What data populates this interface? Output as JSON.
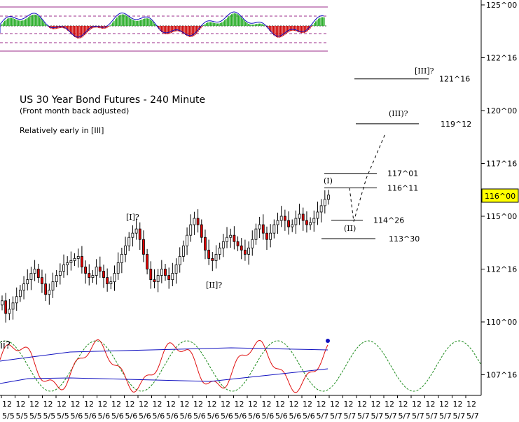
{
  "chart_data": {
    "type": "candlestick",
    "title": "US 30 Year Bond Futures - 240 Minute",
    "subtitle": "(Front month back adjusted)",
    "note": "Relatively early in [III]",
    "current_price": "116^00",
    "y_ticks": [
      "125^00",
      "122^16",
      "120^00",
      "117^16",
      "115^00",
      "112^16",
      "110^00",
      "107^16"
    ],
    "x_tick_top": "12",
    "x_tick_labels": [
      "5/5",
      "5/5",
      "5/5",
      "5/5",
      "5/5",
      "5/6",
      "5/6",
      "5/6",
      "5/6",
      "5/6",
      "5/6",
      "5/6",
      "5/6",
      "5/6",
      "5/6",
      "5/6",
      "5/6",
      "5/6",
      "5/6",
      "5/6",
      "5/6",
      "5/6",
      "5/6",
      "5/7",
      "5/7",
      "5/7",
      "5/7",
      "5/7",
      "5/7",
      "5/7",
      "5/7",
      "5/7",
      "5/7",
      "5/7",
      "5/7"
    ],
    "levels": [
      {
        "label": "121^16",
        "value": 121.5,
        "x_start": 0.0,
        "x_end": 1.0
      },
      {
        "label": "119^12",
        "value": 119.375
      },
      {
        "label": "117^01",
        "value": 117.03
      },
      {
        "label": "116^11",
        "value": 116.34
      },
      {
        "label": "114^26",
        "value": 114.81
      },
      {
        "label": "113^30",
        "value": 113.94
      }
    ],
    "wave_labels": [
      "[III]?",
      "(III)?",
      "(I)",
      "(II)",
      "[I]?",
      "[II]?",
      "ii?"
    ],
    "closes": [
      111.0,
      110.4,
      110.6,
      110.9,
      111.2,
      111.5,
      111.8,
      112.0,
      112.3,
      112.5,
      112.1,
      111.8,
      111.3,
      111.5,
      111.9,
      112.2,
      112.4,
      112.7,
      112.8,
      112.9,
      113.0,
      113.1,
      112.6,
      112.3,
      112.1,
      112.2,
      112.6,
      112.4,
      112.1,
      111.8,
      111.9,
      112.3,
      112.8,
      113.2,
      113.6,
      114.0,
      114.2,
      114.4,
      113.9,
      113.2,
      112.5,
      112.0,
      111.9,
      112.2,
      112.5,
      112.2,
      112.0,
      112.3,
      112.7,
      113.1,
      113.6,
      114.1,
      114.6,
      114.9,
      114.6,
      114.0,
      113.4,
      113.0,
      112.9,
      113.2,
      113.5,
      113.8,
      114.0,
      114.1,
      113.8,
      113.6,
      113.4,
      113.2,
      113.5,
      113.9,
      114.4,
      114.6,
      114.2,
      113.9,
      114.2,
      114.6,
      114.8,
      115.0,
      114.8,
      114.5,
      114.6,
      114.9,
      115.1,
      114.8,
      114.6,
      114.7,
      114.9,
      115.2,
      115.5,
      115.8,
      116.0
    ]
  }
}
